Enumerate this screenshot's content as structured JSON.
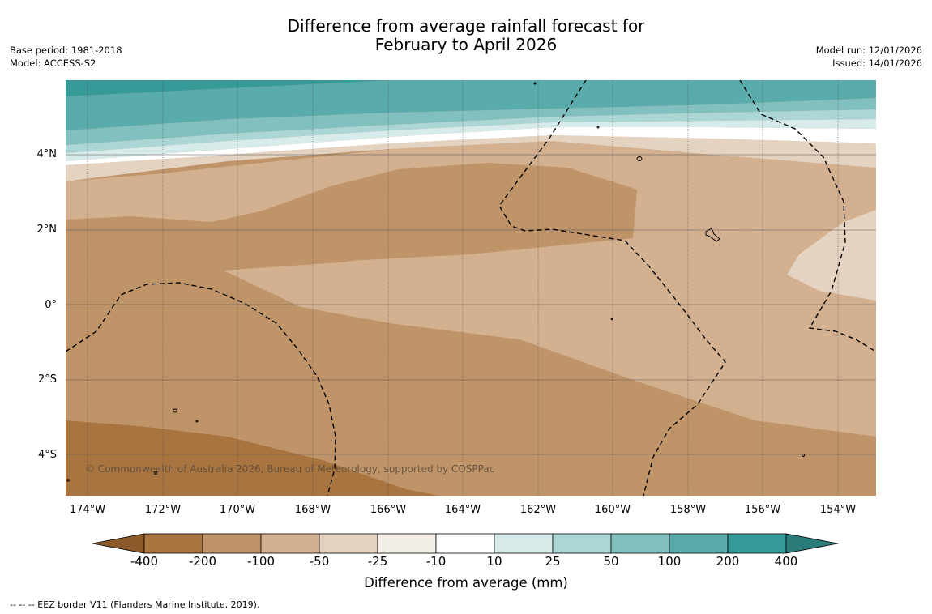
{
  "title": {
    "line1": "Difference from average rainfall forecast for",
    "line2": "February to April 2026"
  },
  "meta_left": {
    "base_period": "Base period: 1981-2018",
    "model": "Model: ACCESS-S2"
  },
  "meta_right": {
    "model_run": "Model run: 12/01/2026",
    "issued": "Issued: 14/01/2026"
  },
  "map": {
    "lat_labels": [
      "4°N",
      "2°N",
      "0°",
      "2°S",
      "4°S"
    ],
    "lon_labels": [
      "174°W",
      "172°W",
      "170°W",
      "168°W",
      "166°W",
      "164°W",
      "162°W",
      "160°W",
      "158°W",
      "156°W",
      "154°W"
    ],
    "copyright": "© Commonwealth of Australia 2026, Bureau of Meteorology, supported by COSPPac"
  },
  "colorbar": {
    "tick_labels": [
      "-400",
      "-200",
      "-100",
      "-50",
      "-25",
      "-10",
      "10",
      "25",
      "50",
      "100",
      "200",
      "400"
    ],
    "colors": [
      "#8a5a2b",
      "#a8743f",
      "#c09469",
      "#d3b090",
      "#e5d3c2",
      "#f4eee8",
      "#ffffff",
      "#d6ebea",
      "#acd6d5",
      "#82c0c0",
      "#5aabab",
      "#369a99",
      "#2a7c7b"
    ],
    "label": "Difference from average (mm)"
  },
  "legend_note": "--  --  -- EEZ border V11 (Flanders Marine Institute, 2019)."
}
